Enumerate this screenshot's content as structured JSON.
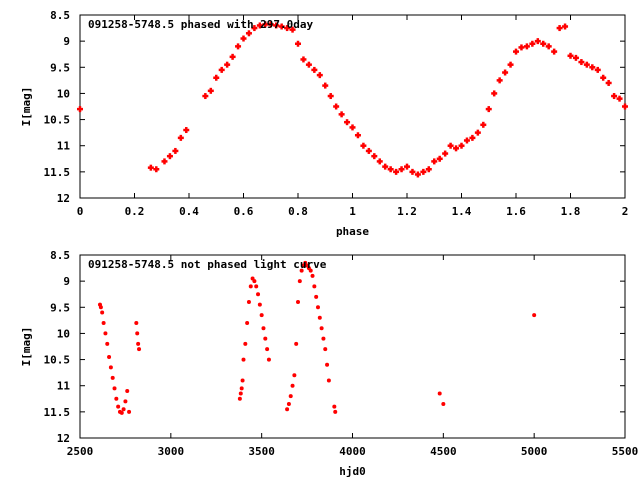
{
  "chart_data": [
    {
      "type": "scatter",
      "title": "091258-5748.5 phased with 297.0day",
      "xlabel": "phase",
      "ylabel": "I[mag]",
      "xlim": [
        0,
        2
      ],
      "ylim": [
        12,
        8.5
      ],
      "y_inverted": true,
      "grid": false,
      "color": "#ff0000",
      "marker": "plus",
      "x_ticks": [
        "0",
        "0.2",
        "0.4",
        "0.6",
        "0.8",
        "1",
        "1.2",
        "1.4",
        "1.6",
        "1.8",
        "2"
      ],
      "y_ticks": [
        "8.5",
        "9",
        "9.5",
        "10",
        "10.5",
        "11",
        "11.5",
        "12"
      ],
      "series": [
        {
          "x": [
            0.0,
            0.26,
            0.28,
            0.31,
            0.33,
            0.35,
            0.37,
            0.39,
            0.46,
            0.48,
            0.5,
            0.52,
            0.54,
            0.56,
            0.58,
            0.6,
            0.62,
            0.64,
            0.66,
            0.68,
            0.7,
            0.72,
            0.74,
            0.76,
            0.78,
            0.8,
            0.82,
            0.84,
            0.86,
            0.88,
            0.9,
            0.92,
            0.94,
            0.96,
            0.98,
            1.0,
            1.02,
            1.04,
            1.06,
            1.08,
            1.1,
            1.12,
            1.14,
            1.16,
            1.18,
            1.2,
            1.22,
            1.24,
            1.26,
            1.28,
            1.3,
            1.32,
            1.34,
            1.36,
            1.38,
            1.4,
            1.42,
            1.44,
            1.46,
            1.48,
            1.5,
            1.52,
            1.54,
            1.56,
            1.58,
            1.6,
            1.62,
            1.64,
            1.66,
            1.68,
            1.7,
            1.72,
            1.74,
            1.76,
            1.78,
            1.8,
            1.82,
            1.84,
            1.86,
            1.88,
            1.9,
            1.92,
            1.94,
            1.96,
            1.98,
            2.0
          ],
          "y": [
            10.3,
            11.42,
            11.45,
            11.3,
            11.2,
            11.1,
            10.85,
            10.7,
            10.05,
            9.95,
            9.7,
            9.55,
            9.45,
            9.3,
            9.1,
            8.95,
            8.85,
            8.75,
            8.7,
            8.68,
            8.68,
            8.7,
            8.72,
            8.75,
            8.78,
            9.05,
            9.35,
            9.45,
            9.55,
            9.65,
            9.85,
            10.05,
            10.25,
            10.4,
            10.55,
            10.65,
            10.8,
            11.0,
            11.1,
            11.2,
            11.3,
            11.4,
            11.45,
            11.5,
            11.45,
            11.4,
            11.5,
            11.55,
            11.5,
            11.45,
            11.3,
            11.25,
            11.15,
            11.0,
            11.05,
            11.0,
            10.9,
            10.85,
            10.75,
            10.6,
            10.3,
            10.0,
            9.75,
            9.6,
            9.45,
            9.2,
            9.12,
            9.1,
            9.05,
            9.0,
            9.05,
            9.1,
            9.2,
            8.75,
            8.72,
            9.28,
            9.32,
            9.4,
            9.45,
            9.5,
            9.55,
            9.7,
            9.8,
            10.05,
            10.1,
            10.25
          ]
        }
      ]
    },
    {
      "type": "scatter",
      "title": "091258-5748.5 not phased light curve",
      "xlabel": "hjd0",
      "ylabel": "I[mag]",
      "xlim": [
        2500,
        5500
      ],
      "ylim": [
        12,
        8.5
      ],
      "y_inverted": true,
      "grid": false,
      "color": "#ff0000",
      "marker": "dot",
      "x_ticks": [
        "2500",
        "3000",
        "3500",
        "4000",
        "4500",
        "5000",
        "5500"
      ],
      "y_ticks": [
        "8.5",
        "9",
        "9.5",
        "10",
        "10.5",
        "11",
        "11.5",
        "12"
      ],
      "series": [
        {
          "x": [
            2610,
            2615,
            2622,
            2630,
            2640,
            2650,
            2660,
            2670,
            2680,
            2690,
            2700,
            2710,
            2720,
            2730,
            2740,
            2750,
            2760,
            2770,
            2810,
            2815,
            2820,
            2825,
            3380,
            3385,
            3390,
            3395,
            3400,
            3410,
            3420,
            3430,
            3440,
            3450,
            3460,
            3470,
            3480,
            3490,
            3500,
            3510,
            3520,
            3530,
            3540,
            3640,
            3650,
            3660,
            3670,
            3680,
            3690,
            3700,
            3710,
            3720,
            3730,
            3740,
            3750,
            3760,
            3770,
            3780,
            3790,
            3800,
            3810,
            3820,
            3830,
            3840,
            3850,
            3860,
            3870,
            3900,
            3905,
            4480,
            4500,
            5000
          ],
          "y": [
            9.45,
            9.5,
            9.6,
            9.8,
            10.0,
            10.2,
            10.45,
            10.65,
            10.85,
            11.05,
            11.25,
            11.4,
            11.5,
            11.52,
            11.45,
            11.3,
            11.1,
            11.5,
            9.8,
            10.0,
            10.2,
            10.3,
            11.25,
            11.15,
            11.05,
            10.9,
            10.5,
            10.2,
            9.8,
            9.4,
            9.1,
            8.95,
            9.0,
            9.1,
            9.25,
            9.45,
            9.65,
            9.9,
            10.1,
            10.3,
            10.5,
            11.45,
            11.35,
            11.2,
            11.0,
            10.8,
            10.2,
            9.4,
            9.0,
            8.8,
            8.7,
            8.65,
            8.7,
            8.75,
            8.8,
            8.9,
            9.1,
            9.3,
            9.5,
            9.7,
            9.9,
            10.1,
            10.3,
            10.6,
            10.9,
            11.4,
            11.5,
            11.15,
            11.35,
            9.65
          ]
        }
      ]
    }
  ]
}
